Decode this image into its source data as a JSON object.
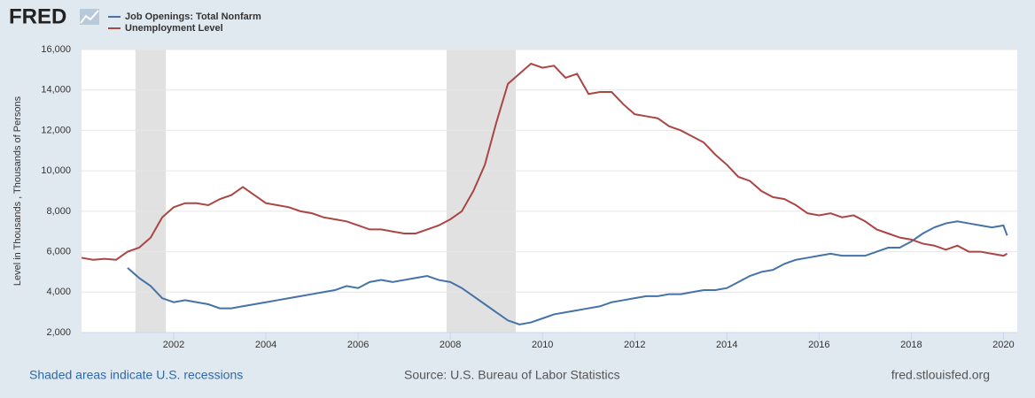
{
  "chart_data": {
    "type": "line",
    "logo": "FRED",
    "ylabel": "Level in Thousands , Thousands of Persons",
    "recession_note": "Shaded areas indicate U.S. recessions",
    "source": "Source: U.S. Bureau of Labor Statistics",
    "site": "fred.stlouisfed.org",
    "recessions": [
      [
        2001.17,
        2001.83
      ],
      [
        2007.92,
        2009.42
      ]
    ],
    "x": [
      2000,
      2000.25,
      2000.5,
      2000.75,
      2001,
      2001.25,
      2001.5,
      2001.75,
      2002,
      2002.25,
      2002.5,
      2002.75,
      2003,
      2003.25,
      2003.5,
      2003.75,
      2004,
      2004.25,
      2004.5,
      2004.75,
      2005,
      2005.25,
      2005.5,
      2005.75,
      2006,
      2006.25,
      2006.5,
      2006.75,
      2007,
      2007.25,
      2007.5,
      2007.75,
      2008,
      2008.25,
      2008.5,
      2008.75,
      2009,
      2009.25,
      2009.5,
      2009.75,
      2010,
      2010.25,
      2010.5,
      2010.75,
      2011,
      2011.25,
      2011.5,
      2011.75,
      2012,
      2012.25,
      2012.5,
      2012.75,
      2013,
      2013.25,
      2013.5,
      2013.75,
      2014,
      2014.25,
      2014.5,
      2014.75,
      2015,
      2015.25,
      2015.5,
      2015.75,
      2016,
      2016.25,
      2016.5,
      2016.75,
      2017,
      2017.25,
      2017.5,
      2017.75,
      2018,
      2018.25,
      2018.5,
      2018.75,
      2019,
      2019.25,
      2019.5,
      2019.75,
      2020,
      2020.08
    ],
    "series": [
      {
        "name": "Job Openings: Total Nonfarm",
        "color": "#4572a7",
        "values": [
          null,
          null,
          null,
          null,
          5200,
          4700,
          4300,
          3700,
          3500,
          3600,
          3500,
          3400,
          3200,
          3200,
          3300,
          3400,
          3500,
          3600,
          3700,
          3800,
          3900,
          4000,
          4100,
          4300,
          4200,
          4500,
          4600,
          4500,
          4600,
          4700,
          4800,
          4600,
          4500,
          4200,
          3800,
          3400,
          3000,
          2600,
          2400,
          2500,
          2700,
          2900,
          3000,
          3100,
          3200,
          3300,
          3500,
          3600,
          3700,
          3800,
          3800,
          3900,
          3900,
          4000,
          4100,
          4100,
          4200,
          4500,
          4800,
          5000,
          5100,
          5400,
          5600,
          5700,
          5800,
          5900,
          5800,
          5800,
          5800,
          6000,
          6200,
          6200,
          6500,
          6900,
          7200,
          7400,
          7500,
          7400,
          7300,
          7200,
          7300,
          6800
        ]
      },
      {
        "name": "Unemployment Level",
        "color": "#aa4643",
        "values": [
          5700,
          5600,
          5650,
          5600,
          6000,
          6200,
          6700,
          7700,
          8200,
          8400,
          8400,
          8300,
          8600,
          8800,
          9200,
          8800,
          8400,
          8300,
          8200,
          8000,
          7900,
          7700,
          7600,
          7500,
          7300,
          7100,
          7100,
          7000,
          6900,
          6900,
          7100,
          7300,
          7600,
          8000,
          9000,
          10300,
          12400,
          14300,
          14800,
          15300,
          15100,
          15200,
          14600,
          14800,
          13800,
          13900,
          13900,
          13300,
          12800,
          12700,
          12600,
          12200,
          12000,
          11700,
          11400,
          10800,
          10300,
          9700,
          9500,
          9000,
          8700,
          8600,
          8300,
          7900,
          7800,
          7900,
          7700,
          7800,
          7500,
          7100,
          6900,
          6700,
          6600,
          6400,
          6300,
          6100,
          6300,
          6000,
          6000,
          5900,
          5800,
          5900
        ]
      }
    ],
    "xlim": [
      2000,
      2020.3
    ],
    "xticks": [
      2002,
      2004,
      2006,
      2008,
      2010,
      2012,
      2014,
      2016,
      2018,
      2020
    ],
    "ylim": [
      2000,
      16000
    ],
    "yticks": [
      {
        "value": 2000,
        "label": "2,000"
      },
      {
        "value": 4000,
        "label": "4,000"
      },
      {
        "value": 6000,
        "label": "6,000"
      },
      {
        "value": 8000,
        "label": "8,000"
      },
      {
        "value": 10000,
        "label": "10,000"
      },
      {
        "value": 12000,
        "label": "12,000"
      },
      {
        "value": 14000,
        "label": "14,000"
      },
      {
        "value": 16000,
        "label": "16,000"
      }
    ],
    "grid": true
  }
}
